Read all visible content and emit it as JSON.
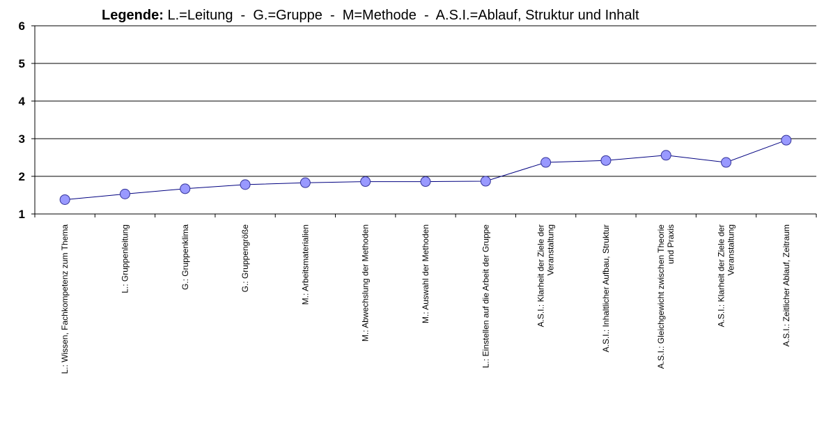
{
  "chart_data": {
    "type": "line",
    "legend": {
      "key": "Legende:",
      "text": " L.=Leitung  -  G.=Gruppe  -  M=Methode  -  A.S.I.=Ablauf, Struktur und Inhalt"
    },
    "categories": [
      [
        "L.: Wissen, Fachkompetenz zum Thema"
      ],
      [
        "L.: Gruppenleitung"
      ],
      [
        "G.: Gruppenklima"
      ],
      [
        "G.: Gruppengröße"
      ],
      [
        "M.: Arbeitsmaterialien"
      ],
      [
        "M.: Abwechslung der Methoden"
      ],
      [
        "M.: Auswahl der Methoden"
      ],
      [
        "L.: Einstellen auf die Arbeit der Gruppe"
      ],
      [
        "A.S.I.: Klarheit der Ziele der",
        "Veranstaltung"
      ],
      [
        "A.S.I.: Inhaltlicher Aufbau, Struktur"
      ],
      [
        "A.S.I.: Gleichgewicht zwischen Theorie",
        "und Praxis"
      ],
      [
        "A.S.I.: Klarheit der Ziele der",
        "Veranstaltung"
      ],
      [
        "A.S.I.: Zeitlicher Ablauf, Zeitraum"
      ]
    ],
    "series": [
      {
        "values": [
          1.38,
          1.53,
          1.67,
          1.78,
          1.83,
          1.86,
          1.86,
          1.87,
          2.37,
          2.42,
          2.56,
          2.37,
          2.96
        ]
      }
    ],
    "ylim": [
      1,
      6
    ],
    "yticks": [
      "1",
      "2",
      "3",
      "4",
      "5",
      "6"
    ],
    "grid": true,
    "colors": {
      "line": "#000080",
      "marker_fill": "#9999ff",
      "marker_stroke": "#333399",
      "grid": "#000000"
    }
  }
}
